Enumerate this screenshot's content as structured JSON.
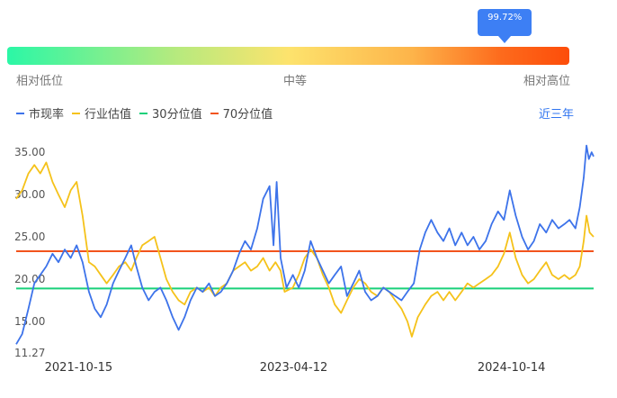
{
  "gauge": {
    "percentile_label": "99.72%",
    "percentile": 0.9972,
    "low_label": "相对低位",
    "mid_label": "中等",
    "high_label": "相对高位"
  },
  "legend": {
    "items": [
      {
        "label": "市现率",
        "color": "#3d73ea"
      },
      {
        "label": "行业估值",
        "color": "#f5c21a"
      },
      {
        "label": "30分位值",
        "color": "#19d07a"
      },
      {
        "label": "70分位值",
        "color": "#f2541d"
      }
    ]
  },
  "range_selector": {
    "label": "近三年"
  },
  "chart_data": {
    "type": "line",
    "ylim": [
      11.27,
      36.5
    ],
    "y_ticks": [
      {
        "value": 35,
        "label": "35.00"
      },
      {
        "value": 30,
        "label": "30.00"
      },
      {
        "value": 25,
        "label": "25.00"
      },
      {
        "value": 20,
        "label": "20.00"
      },
      {
        "value": 15,
        "label": "15.00"
      },
      {
        "value": 11.27,
        "label": "11.27"
      }
    ],
    "x_range": [
      "2021-05-10",
      "2025-05-10"
    ],
    "x_ticks": [
      "2021-10-15",
      "2023-04-12",
      "2024-10-14"
    ],
    "reference_lines": [
      {
        "name": "30分位值",
        "value": 18.9,
        "color": "#19d07a"
      },
      {
        "name": "70分位值",
        "value": 23.3,
        "color": "#f2541d"
      }
    ],
    "series": [
      {
        "name": "市现率",
        "color": "#3d73ea",
        "points": [
          [
            "2021-05-10",
            12.3
          ],
          [
            "2021-05-25",
            13.5
          ],
          [
            "2021-06-10",
            16.5
          ],
          [
            "2021-06-25",
            19.5
          ],
          [
            "2021-07-10",
            20.5
          ],
          [
            "2021-07-25",
            21.5
          ],
          [
            "2021-08-10",
            23.0
          ],
          [
            "2021-08-25",
            22.0
          ],
          [
            "2021-09-10",
            23.5
          ],
          [
            "2021-09-25",
            22.5
          ],
          [
            "2021-10-10",
            24.0
          ],
          [
            "2021-10-25",
            22.0
          ],
          [
            "2021-11-10",
            18.5
          ],
          [
            "2021-11-25",
            16.5
          ],
          [
            "2021-12-10",
            15.5
          ],
          [
            "2021-12-25",
            17.0
          ],
          [
            "2022-01-10",
            19.5
          ],
          [
            "2022-01-25",
            21.0
          ],
          [
            "2022-02-10",
            22.5
          ],
          [
            "2022-02-25",
            24.0
          ],
          [
            "2022-03-10",
            21.5
          ],
          [
            "2022-03-25",
            19.0
          ],
          [
            "2022-04-10",
            17.5
          ],
          [
            "2022-04-25",
            18.5
          ],
          [
            "2022-05-10",
            19.0
          ],
          [
            "2022-05-25",
            17.5
          ],
          [
            "2022-06-10",
            15.5
          ],
          [
            "2022-06-25",
            14.0
          ],
          [
            "2022-07-10",
            15.5
          ],
          [
            "2022-07-25",
            17.5
          ],
          [
            "2022-08-10",
            19.0
          ],
          [
            "2022-08-25",
            18.5
          ],
          [
            "2022-09-10",
            19.5
          ],
          [
            "2022-09-25",
            18.0
          ],
          [
            "2022-10-10",
            18.5
          ],
          [
            "2022-10-25",
            19.5
          ],
          [
            "2022-11-10",
            21.0
          ],
          [
            "2022-11-25",
            23.0
          ],
          [
            "2022-12-10",
            24.5
          ],
          [
            "2022-12-25",
            23.5
          ],
          [
            "2023-01-10",
            26.0
          ],
          [
            "2023-01-25",
            29.5
          ],
          [
            "2023-02-10",
            31.0
          ],
          [
            "2023-02-20",
            24.0
          ],
          [
            "2023-02-28",
            31.5
          ],
          [
            "2023-03-10",
            22.5
          ],
          [
            "2023-03-25",
            19.0
          ],
          [
            "2023-04-10",
            20.5
          ],
          [
            "2023-04-25",
            19.0
          ],
          [
            "2023-05-10",
            21.0
          ],
          [
            "2023-05-25",
            24.5
          ],
          [
            "2023-06-10",
            22.5
          ],
          [
            "2023-06-25",
            21.0
          ],
          [
            "2023-07-10",
            19.5
          ],
          [
            "2023-07-25",
            20.5
          ],
          [
            "2023-08-10",
            21.5
          ],
          [
            "2023-08-25",
            18.0
          ],
          [
            "2023-09-10",
            19.5
          ],
          [
            "2023-09-25",
            21.0
          ],
          [
            "2023-10-10",
            18.5
          ],
          [
            "2023-10-25",
            17.5
          ],
          [
            "2023-11-10",
            18.0
          ],
          [
            "2023-11-25",
            19.0
          ],
          [
            "2023-12-10",
            18.5
          ],
          [
            "2023-12-25",
            18.0
          ],
          [
            "2024-01-10",
            17.5
          ],
          [
            "2024-01-25",
            18.5
          ],
          [
            "2024-02-10",
            19.5
          ],
          [
            "2024-02-25",
            23.5
          ],
          [
            "2024-03-10",
            25.5
          ],
          [
            "2024-03-25",
            27.0
          ],
          [
            "2024-04-10",
            25.5
          ],
          [
            "2024-04-25",
            24.5
          ],
          [
            "2024-05-10",
            26.0
          ],
          [
            "2024-05-25",
            24.0
          ],
          [
            "2024-06-10",
            25.5
          ],
          [
            "2024-06-25",
            24.0
          ],
          [
            "2024-07-10",
            25.0
          ],
          [
            "2024-07-25",
            23.5
          ],
          [
            "2024-08-10",
            24.5
          ],
          [
            "2024-08-25",
            26.5
          ],
          [
            "2024-09-10",
            28.0
          ],
          [
            "2024-09-25",
            27.0
          ],
          [
            "2024-10-10",
            30.5
          ],
          [
            "2024-10-25",
            27.5
          ],
          [
            "2024-11-10",
            25.0
          ],
          [
            "2024-11-25",
            23.5
          ],
          [
            "2024-12-10",
            24.5
          ],
          [
            "2024-12-25",
            26.5
          ],
          [
            "2025-01-10",
            25.5
          ],
          [
            "2025-01-25",
            27.0
          ],
          [
            "2025-02-10",
            26.0
          ],
          [
            "2025-02-25",
            26.5
          ],
          [
            "2025-03-10",
            27.0
          ],
          [
            "2025-03-25",
            26.0
          ],
          [
            "2025-04-05",
            28.5
          ],
          [
            "2025-04-15",
            32.0
          ],
          [
            "2025-04-22",
            35.8
          ],
          [
            "2025-04-28",
            34.2
          ],
          [
            "2025-05-05",
            35.0
          ],
          [
            "2025-05-10",
            34.5
          ]
        ]
      },
      {
        "name": "行业估值",
        "color": "#f5c21a",
        "points": [
          [
            "2021-05-10",
            29.5
          ],
          [
            "2021-05-25",
            30.5
          ],
          [
            "2021-06-10",
            32.5
          ],
          [
            "2021-06-25",
            33.5
          ],
          [
            "2021-07-10",
            32.5
          ],
          [
            "2021-07-25",
            33.8
          ],
          [
            "2021-08-10",
            31.5
          ],
          [
            "2021-08-25",
            30.0
          ],
          [
            "2021-09-10",
            28.5
          ],
          [
            "2021-09-25",
            30.5
          ],
          [
            "2021-10-10",
            31.5
          ],
          [
            "2021-10-25",
            27.5
          ],
          [
            "2021-11-10",
            22.0
          ],
          [
            "2021-11-25",
            21.5
          ],
          [
            "2021-12-10",
            20.5
          ],
          [
            "2021-12-25",
            19.5
          ],
          [
            "2022-01-10",
            20.5
          ],
          [
            "2022-01-25",
            21.5
          ],
          [
            "2022-02-10",
            22.0
          ],
          [
            "2022-02-25",
            21.0
          ],
          [
            "2022-03-10",
            22.5
          ],
          [
            "2022-03-25",
            24.0
          ],
          [
            "2022-04-10",
            24.5
          ],
          [
            "2022-04-25",
            25.0
          ],
          [
            "2022-05-10",
            22.5
          ],
          [
            "2022-05-25",
            20.0
          ],
          [
            "2022-06-10",
            18.5
          ],
          [
            "2022-06-25",
            17.5
          ],
          [
            "2022-07-10",
            17.0
          ],
          [
            "2022-07-25",
            18.5
          ],
          [
            "2022-08-10",
            19.0
          ],
          [
            "2022-08-25",
            18.5
          ],
          [
            "2022-09-10",
            19.0
          ],
          [
            "2022-09-25",
            18.0
          ],
          [
            "2022-10-10",
            19.0
          ],
          [
            "2022-10-25",
            19.5
          ],
          [
            "2022-11-10",
            21.0
          ],
          [
            "2022-11-25",
            21.5
          ],
          [
            "2022-12-10",
            22.0
          ],
          [
            "2022-12-25",
            21.0
          ],
          [
            "2023-01-10",
            21.5
          ],
          [
            "2023-01-25",
            22.5
          ],
          [
            "2023-02-10",
            21.0
          ],
          [
            "2023-02-25",
            22.0
          ],
          [
            "2023-03-10",
            21.0
          ],
          [
            "2023-03-20",
            18.5
          ],
          [
            "2023-04-10",
            19.0
          ],
          [
            "2023-04-25",
            20.5
          ],
          [
            "2023-05-10",
            22.5
          ],
          [
            "2023-05-25",
            23.5
          ],
          [
            "2023-06-10",
            22.5
          ],
          [
            "2023-06-25",
            20.5
          ],
          [
            "2023-07-10",
            19.0
          ],
          [
            "2023-07-25",
            17.0
          ],
          [
            "2023-08-10",
            16.0
          ],
          [
            "2023-08-25",
            17.5
          ],
          [
            "2023-09-10",
            19.0
          ],
          [
            "2023-09-25",
            20.0
          ],
          [
            "2023-10-10",
            19.5
          ],
          [
            "2023-10-25",
            18.5
          ],
          [
            "2023-11-10",
            18.0
          ],
          [
            "2023-11-25",
            19.0
          ],
          [
            "2023-12-10",
            18.5
          ],
          [
            "2023-12-25",
            17.5
          ],
          [
            "2024-01-10",
            16.5
          ],
          [
            "2024-01-25",
            15.0
          ],
          [
            "2024-02-05",
            13.2
          ],
          [
            "2024-02-20",
            15.5
          ],
          [
            "2024-03-10",
            17.0
          ],
          [
            "2024-03-25",
            18.0
          ],
          [
            "2024-04-10",
            18.5
          ],
          [
            "2024-04-25",
            17.5
          ],
          [
            "2024-05-10",
            18.5
          ],
          [
            "2024-05-25",
            17.5
          ],
          [
            "2024-06-10",
            18.5
          ],
          [
            "2024-06-25",
            19.5
          ],
          [
            "2024-07-10",
            19.0
          ],
          [
            "2024-07-25",
            19.5
          ],
          [
            "2024-08-10",
            20.0
          ],
          [
            "2024-08-25",
            20.5
          ],
          [
            "2024-09-10",
            21.5
          ],
          [
            "2024-09-25",
            23.0
          ],
          [
            "2024-10-10",
            25.5
          ],
          [
            "2024-10-25",
            22.5
          ],
          [
            "2024-11-10",
            20.5
          ],
          [
            "2024-11-25",
            19.5
          ],
          [
            "2024-12-10",
            20.0
          ],
          [
            "2024-12-25",
            21.0
          ],
          [
            "2025-01-10",
            22.0
          ],
          [
            "2025-01-25",
            20.5
          ],
          [
            "2025-02-10",
            20.0
          ],
          [
            "2025-02-25",
            20.5
          ],
          [
            "2025-03-10",
            20.0
          ],
          [
            "2025-03-25",
            20.5
          ],
          [
            "2025-04-05",
            21.5
          ],
          [
            "2025-04-15",
            24.5
          ],
          [
            "2025-04-22",
            27.5
          ],
          [
            "2025-04-30",
            25.5
          ],
          [
            "2025-05-10",
            25.0
          ]
        ]
      }
    ]
  }
}
